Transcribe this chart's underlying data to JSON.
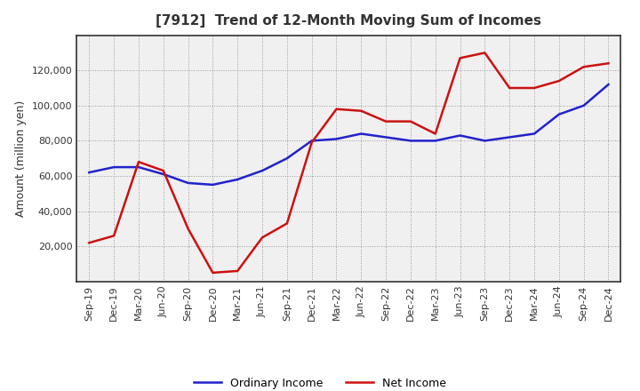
{
  "title": "[7912]  Trend of 12-Month Moving Sum of Incomes",
  "ylabel": "Amount (million yen)",
  "xlabels": [
    "Sep-19",
    "Dec-19",
    "Mar-20",
    "Jun-20",
    "Sep-20",
    "Dec-20",
    "Mar-21",
    "Jun-21",
    "Sep-21",
    "Dec-21",
    "Mar-22",
    "Jun-22",
    "Sep-22",
    "Dec-22",
    "Mar-23",
    "Jun-23",
    "Sep-23",
    "Dec-23",
    "Mar-24",
    "Jun-24",
    "Sep-24",
    "Dec-24"
  ],
  "ordinary_income": [
    62000,
    65000,
    65000,
    61000,
    56000,
    55000,
    58000,
    63000,
    70000,
    80000,
    81000,
    84000,
    82000,
    80000,
    80000,
    83000,
    80000,
    82000,
    84000,
    95000,
    100000,
    112000
  ],
  "net_income": [
    22000,
    26000,
    68000,
    63000,
    30000,
    5000,
    6000,
    25000,
    33000,
    79000,
    98000,
    97000,
    91000,
    91000,
    84000,
    127000,
    130000,
    110000,
    110000,
    114000,
    122000,
    124000
  ],
  "ordinary_color": "#2222cc",
  "net_color": "#cc1111",
  "ylim": [
    0,
    140000
  ],
  "yticks": [
    20000,
    40000,
    60000,
    80000,
    100000,
    120000
  ],
  "background_color": "#ffffff",
  "plot_bg_color": "#f0f0f0",
  "grid_color": "#999999",
  "title_color": "#333333",
  "line_width": 1.8,
  "title_fontsize": 11,
  "ylabel_fontsize": 9,
  "tick_fontsize": 8
}
